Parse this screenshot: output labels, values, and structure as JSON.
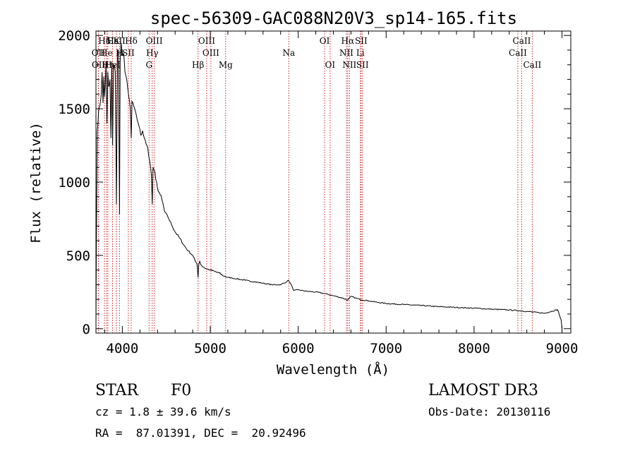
{
  "chart_data": {
    "type": "line",
    "title": "spec-56309-GAC088N20V3_sp14-165.fits",
    "xlabel": "Wavelength (Å)",
    "ylabel": "Flux (relative)",
    "xlim": [
      3700,
      9100
    ],
    "ylim": [
      -30,
      2030
    ],
    "xticks": [
      4000,
      5000,
      6000,
      7000,
      8000,
      9000
    ],
    "yticks": [
      0,
      500,
      1000,
      1500,
      2000
    ],
    "grid": false,
    "series": [
      {
        "name": "flux",
        "x": [
          3700,
          3705,
          3715,
          3730,
          3745,
          3760,
          3770,
          3780,
          3790,
          3797,
          3805,
          3815,
          3825,
          3835,
          3845,
          3860,
          3870,
          3880,
          3889,
          3900,
          3910,
          3920,
          3933,
          3945,
          3955,
          3968,
          3975,
          3985,
          3995,
          4005,
          4015,
          4030,
          4050,
          4070,
          4090,
          4101,
          4110,
          4130,
          4150,
          4170,
          4190,
          4210,
          4230,
          4250,
          4270,
          4290,
          4310,
          4330,
          4340,
          4350,
          4365,
          4380,
          4400,
          4420,
          4450,
          4480,
          4520,
          4560,
          4600,
          4650,
          4700,
          4750,
          4800,
          4830,
          4850,
          4861,
          4870,
          4880,
          4900,
          4950,
          5000,
          5050,
          5100,
          5150,
          5200,
          5250,
          5300,
          5400,
          5500,
          5600,
          5700,
          5800,
          5870,
          5890,
          5920,
          5950,
          6000,
          6100,
          6200,
          6300,
          6400,
          6500,
          6563,
          6600,
          6650,
          6700,
          6800,
          6900,
          7000,
          7200,
          7400,
          7600,
          7700,
          7800,
          8000,
          8200,
          8400,
          8600,
          8800,
          8950,
          8990,
          9000
        ],
        "y": [
          0,
          600,
          1350,
          1480,
          1520,
          1600,
          1750,
          1540,
          1720,
          1580,
          1650,
          1820,
          1400,
          1750,
          1650,
          1700,
          1300,
          1820,
          1250,
          1780,
          1800,
          1750,
          850,
          1850,
          1900,
          780,
          1820,
          1950,
          1900,
          1860,
          1880,
          1750,
          1700,
          1600,
          1500,
          1300,
          1550,
          1520,
          1480,
          1420,
          1380,
          1320,
          1350,
          1300,
          1260,
          1230,
          1150,
          1050,
          850,
          1100,
          1080,
          1020,
          960,
          930,
          880,
          800,
          760,
          710,
          660,
          620,
          570,
          530,
          500,
          460,
          440,
          350,
          440,
          460,
          430,
          410,
          400,
          390,
          380,
          360,
          350,
          345,
          340,
          330,
          320,
          310,
          300,
          300,
          320,
          330,
          300,
          260,
          265,
          255,
          250,
          240,
          225,
          210,
          195,
          220,
          210,
          200,
          190,
          180,
          172,
          165,
          158,
          150,
          148,
          145,
          140,
          133,
          128,
          118,
          105,
          130,
          60,
          0
        ]
      }
    ],
    "spectral_lines": [
      {
        "label": "Hδ",
        "x": 3797,
        "row": 1
      },
      {
        "label": "CaII",
        "x": 3933,
        "row": 1
      },
      {
        "label": "Hε",
        "x": 3889,
        "row": 1
      },
      {
        "label": "K",
        "x": 3933,
        "row": 1
      },
      {
        "label": "Hδ",
        "x": 4101,
        "row": 1
      },
      {
        "label": "OIII",
        "x": 4363,
        "row": 1
      },
      {
        "label": "OIII",
        "x": 4959,
        "row": 1
      },
      {
        "label": "OI",
        "x": 6300,
        "row": 1
      },
      {
        "label": "Hα",
        "x": 6563,
        "row": 1
      },
      {
        "label": "SII",
        "x": 6716,
        "row": 1
      },
      {
        "label": "CaII",
        "x": 8542,
        "row": 1
      },
      {
        "label": "OII",
        "x": 3727,
        "row": 2
      },
      {
        "label": "He",
        "x": 3820,
        "row": 2
      },
      {
        "label": "H",
        "x": 3968,
        "row": 2
      },
      {
        "label": "SII",
        "x": 4068,
        "row": 2
      },
      {
        "label": "Hγ",
        "x": 4340,
        "row": 2
      },
      {
        "label": "OIII",
        "x": 5007,
        "row": 2
      },
      {
        "label": "Na",
        "x": 5893,
        "row": 2
      },
      {
        "label": "NII",
        "x": 6548,
        "row": 2
      },
      {
        "label": "Li",
        "x": 6707,
        "row": 2
      },
      {
        "label": "CaII",
        "x": 8498,
        "row": 2
      },
      {
        "label": "OII",
        "x": 3729,
        "row": 3
      },
      {
        "label": "Hη",
        "x": 3835,
        "row": 3
      },
      {
        "label": "HeI",
        "x": 3889,
        "row": 3
      },
      {
        "label": "G",
        "x": 4304,
        "row": 3
      },
      {
        "label": "Hβ",
        "x": 4861,
        "row": 3
      },
      {
        "label": "Mg",
        "x": 5175,
        "row": 3
      },
      {
        "label": "OI",
        "x": 6363,
        "row": 3
      },
      {
        "label": "NII",
        "x": 6583,
        "row": 3
      },
      {
        "label": "SII",
        "x": 6731,
        "row": 3
      },
      {
        "label": "CaII",
        "x": 8662,
        "row": 3
      }
    ]
  },
  "info": {
    "class_label": "STAR",
    "subclass": "F0",
    "survey": "LAMOST DR3",
    "redshift": "cz = 1.8 ± 39.6 km/s",
    "obs_date": "Obs-Date: 20130116",
    "coords": "RA =  87.01391, DEC =  20.92496"
  },
  "colors": {
    "line": "#000000",
    "marker": "#cc2222",
    "axis": "#000000",
    "background": "#ffffff"
  }
}
